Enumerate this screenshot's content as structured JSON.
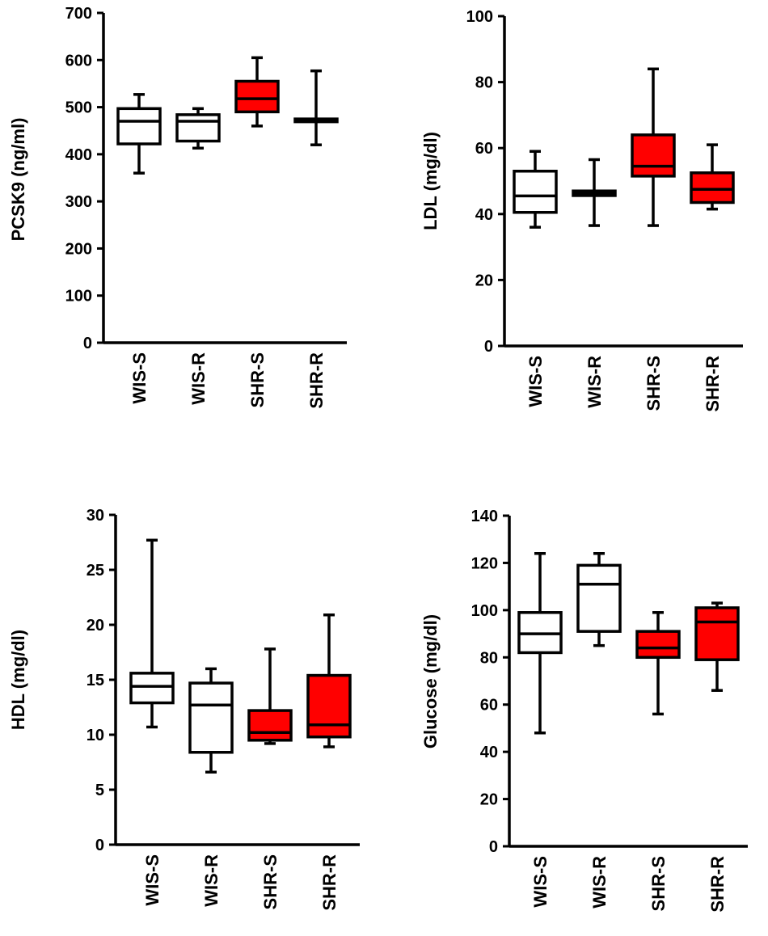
{
  "colors": {
    "control": "#ffffff",
    "hypertensive": "#ff0000",
    "stroke": "#000000"
  },
  "chart_data": [
    {
      "type": "boxplot",
      "ylabel": "PCSK9 (ng/ml)",
      "ylim": [
        0,
        700
      ],
      "yticks": [
        0,
        100,
        200,
        300,
        400,
        500,
        600,
        700
      ],
      "categories": [
        "WIS-S",
        "WIS-R",
        "SHR-S",
        "SHR-R"
      ],
      "boxes": [
        {
          "category": "WIS-S",
          "min": 360,
          "q1": 422,
          "median": 470,
          "q3": 497,
          "max": 527,
          "fill": "control"
        },
        {
          "category": "WIS-R",
          "min": 413,
          "q1": 428,
          "median": 470,
          "q3": 484,
          "max": 497,
          "fill": "control"
        },
        {
          "category": "SHR-S",
          "min": 460,
          "q1": 490,
          "median": 518,
          "q3": 555,
          "max": 605,
          "fill": "hypertensive"
        },
        {
          "category": "SHR-R",
          "min": 420,
          "q1": 469,
          "median": 472,
          "q3": 475,
          "max": 577,
          "fill": "hypertensive"
        }
      ]
    },
    {
      "type": "boxplot",
      "ylabel": "LDL (mg/dl)",
      "ylim": [
        0,
        100
      ],
      "yticks": [
        0,
        20,
        40,
        60,
        80,
        100
      ],
      "categories": [
        "WIS-S",
        "WIS-R",
        "SHR-S",
        "SHR-R"
      ],
      "boxes": [
        {
          "category": "WIS-S",
          "min": 36,
          "q1": 40.5,
          "median": 45.5,
          "q3": 53,
          "max": 59,
          "fill": "control"
        },
        {
          "category": "WIS-R",
          "min": 36.5,
          "q1": 45.6,
          "median": 46.3,
          "q3": 47,
          "max": 56.5,
          "fill": "control"
        },
        {
          "category": "SHR-S",
          "min": 36.5,
          "q1": 51.5,
          "median": 54.5,
          "q3": 64,
          "max": 84,
          "fill": "hypertensive"
        },
        {
          "category": "SHR-R",
          "min": 41.5,
          "q1": 43.5,
          "median": 47.5,
          "q3": 52.5,
          "max": 61,
          "fill": "hypertensive"
        }
      ]
    },
    {
      "type": "boxplot",
      "ylabel": "HDL (mg/dl)",
      "ylim": [
        0,
        30
      ],
      "yticks": [
        0,
        5,
        10,
        15,
        20,
        25,
        30
      ],
      "categories": [
        "WIS-S",
        "WIS-R",
        "SHR-S",
        "SHR-R"
      ],
      "boxes": [
        {
          "category": "WIS-S",
          "min": 10.7,
          "q1": 12.9,
          "median": 14.4,
          "q3": 15.6,
          "max": 27.7,
          "fill": "control"
        },
        {
          "category": "WIS-R",
          "min": 6.6,
          "q1": 8.4,
          "median": 12.7,
          "q3": 14.7,
          "max": 16.0,
          "fill": "control"
        },
        {
          "category": "SHR-S",
          "min": 9.2,
          "q1": 9.5,
          "median": 10.2,
          "q3": 12.2,
          "max": 17.8,
          "fill": "hypertensive"
        },
        {
          "category": "SHR-R",
          "min": 8.9,
          "q1": 9.8,
          "median": 10.9,
          "q3": 15.4,
          "max": 20.9,
          "fill": "hypertensive"
        }
      ]
    },
    {
      "type": "boxplot",
      "ylabel": "Glucose (mg/dl)",
      "ylim": [
        0,
        140
      ],
      "yticks": [
        0,
        20,
        40,
        60,
        80,
        100,
        120,
        140
      ],
      "categories": [
        "WIS-S",
        "WIS-R",
        "SHR-S",
        "SHR-R"
      ],
      "boxes": [
        {
          "category": "WIS-S",
          "min": 48,
          "q1": 82,
          "median": 90,
          "q3": 99,
          "max": 124,
          "fill": "control"
        },
        {
          "category": "WIS-R",
          "min": 85,
          "q1": 91,
          "median": 111,
          "q3": 119,
          "max": 124,
          "fill": "control"
        },
        {
          "category": "SHR-S",
          "min": 56,
          "q1": 80,
          "median": 84,
          "q3": 91,
          "max": 99,
          "fill": "hypertensive"
        },
        {
          "category": "SHR-R",
          "min": 66,
          "q1": 79,
          "median": 95,
          "q3": 101,
          "max": 103,
          "fill": "hypertensive"
        }
      ]
    }
  ]
}
